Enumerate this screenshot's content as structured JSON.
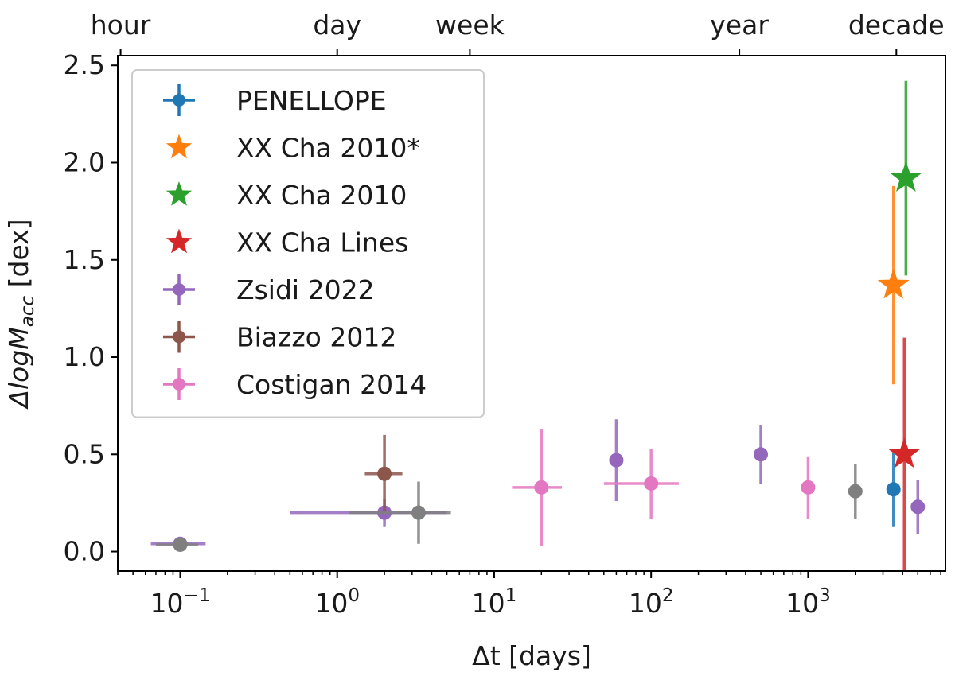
{
  "chart_data": {
    "type": "scatter",
    "x_scale": "log",
    "xlim": [
      0.04,
      7500
    ],
    "ylim": [
      -0.1,
      2.55
    ],
    "xlabel": "Δt [days]",
    "ylabel_main": "ΔlogM",
    "ylabel_sub": "acc",
    "ylabel_unit": " [dex]",
    "x_ticks": [
      {
        "value": 0.1,
        "base": "10",
        "exp": "−1"
      },
      {
        "value": 1,
        "base": "10",
        "exp": "0"
      },
      {
        "value": 10,
        "base": "10",
        "exp": "1"
      },
      {
        "value": 100,
        "base": "10",
        "exp": "2"
      },
      {
        "value": 1000,
        "base": "10",
        "exp": "3"
      }
    ],
    "y_ticks": [
      {
        "value": 0.0,
        "label": "0.0"
      },
      {
        "value": 0.5,
        "label": "0.5"
      },
      {
        "value": 1.0,
        "label": "1.0"
      },
      {
        "value": 1.5,
        "label": "1.5"
      },
      {
        "value": 2.0,
        "label": "2.0"
      },
      {
        "value": 2.5,
        "label": "2.5"
      }
    ],
    "top_ticks": [
      {
        "value": 0.0417,
        "label": "hour"
      },
      {
        "value": 1,
        "label": "day"
      },
      {
        "value": 7,
        "label": "week"
      },
      {
        "value": 365,
        "label": "year"
      },
      {
        "value": 3650,
        "label": "decade"
      }
    ],
    "legend_position": "upper-left",
    "series": [
      {
        "name": "PENELLOPE",
        "color": "#1f77b4",
        "marker": "circle",
        "points": [
          {
            "x": 3500,
            "y": 0.32,
            "xerr": null,
            "yerr": [
              0.19,
              0.19
            ]
          }
        ]
      },
      {
        "name": "XX Cha 2010*",
        "color": "#ff7f0e",
        "marker": "star",
        "points": [
          {
            "x": 3500,
            "y": 1.37,
            "xerr": null,
            "yerr": [
              0.51,
              0.51
            ]
          }
        ]
      },
      {
        "name": "XX Cha 2010",
        "color": "#2ca02c",
        "marker": "star",
        "points": [
          {
            "x": 4200,
            "y": 1.92,
            "xerr": null,
            "yerr": [
              0.5,
              0.5
            ]
          }
        ]
      },
      {
        "name": "XX Cha Lines",
        "color": "#d62728",
        "marker": "star",
        "points": [
          {
            "x": 4100,
            "y": 0.5,
            "xerr": null,
            "yerr": [
              0.6,
              0.6
            ]
          }
        ]
      },
      {
        "name": "Zsidi 2022",
        "color": "#9467bd",
        "marker": "circle",
        "points": [
          {
            "x": 0.1,
            "y": 0.04,
            "xerr": [
              0.035,
              0.045
            ],
            "yerr": null
          },
          {
            "x": 2,
            "y": 0.2,
            "xerr": [
              1.5,
              3
            ],
            "yerr": [
              0.07,
              0.07
            ]
          },
          {
            "x": 60,
            "y": 0.47,
            "xerr": null,
            "yerr": [
              0.21,
              0.21
            ]
          },
          {
            "x": 500,
            "y": 0.5,
            "xerr": null,
            "yerr": [
              0.15,
              0.15
            ]
          },
          {
            "x": 5000,
            "y": 0.23,
            "xerr": null,
            "yerr": [
              0.14,
              0.14
            ]
          }
        ]
      },
      {
        "name": "Biazzo 2012",
        "color": "#8c564b",
        "marker": "circle",
        "points": [
          {
            "x": 2,
            "y": 0.4,
            "xerr": [
              0.5,
              0.6
            ],
            "yerr": [
              0.2,
              0.2
            ]
          }
        ]
      },
      {
        "name": "Costigan 2014",
        "color": "#e377c2",
        "marker": "circle",
        "points": [
          {
            "x": 20,
            "y": 0.33,
            "xerr": [
              7,
              7
            ],
            "yerr": [
              0.3,
              0.3
            ]
          },
          {
            "x": 100,
            "y": 0.35,
            "xerr": [
              50,
              50
            ],
            "yerr": [
              0.18,
              0.18
            ]
          },
          {
            "x": 1000,
            "y": 0.33,
            "xerr": null,
            "yerr": [
              0.16,
              0.16
            ]
          }
        ]
      },
      {
        "name": "",
        "color": "#7f7f7f",
        "marker": "circle",
        "in_legend": false,
        "points": [
          {
            "x": 0.1,
            "y": 0.035,
            "xerr": [
              0.03,
              0.03
            ],
            "yerr": null
          },
          {
            "x": 3.3,
            "y": 0.2,
            "xerr": [
              2.1,
              2
            ],
            "yerr": [
              0.16,
              0.16
            ]
          },
          {
            "x": 2000,
            "y": 0.31,
            "xerr": null,
            "yerr": [
              0.14,
              0.14
            ]
          }
        ]
      }
    ]
  }
}
